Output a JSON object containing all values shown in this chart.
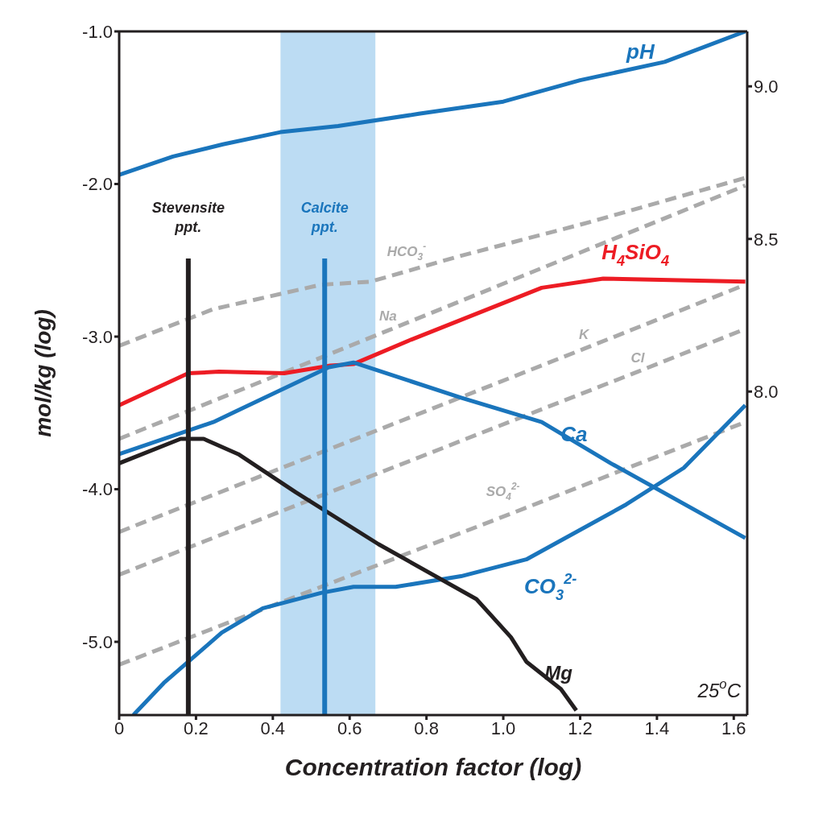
{
  "chart_data": {
    "type": "line",
    "xlabel": "Concentration factor (log)",
    "ylabel": "mol/kg (log)",
    "xlim": [
      0,
      1.635
    ],
    "xticks": [
      0,
      0.2,
      0.4,
      0.6,
      0.8,
      {
        "value": 1,
        "label": "1.0"
      },
      1.2,
      1.4,
      1.6
    ],
    "ylim": [
      -5.48,
      -1.0
    ],
    "yticks": [
      {
        "value": -1,
        "label": "-1.0"
      },
      {
        "value": -2,
        "label": "-2.0"
      },
      {
        "value": -3,
        "label": "-3.0"
      },
      {
        "value": -4,
        "label": "-4.0"
      },
      {
        "value": -5,
        "label": "-5.0"
      }
    ],
    "y2lim": [
      6.94,
      9.18
    ],
    "y2ticks": [
      {
        "value": 8,
        "label": "8.0"
      },
      8.5,
      {
        "value": 9,
        "label": "9.0"
      }
    ],
    "grid": false,
    "marker": "none",
    "annotations": [
      "25$^{o}$C"
    ],
    "bands": [
      {
        "axis": "x",
        "from": 0.42,
        "to": 0.667,
        "color": "#bcdcf3"
      }
    ],
    "ref_lines": [
      {
        "axis": "x",
        "value": 0.18,
        "label": "Stevensite ppt.",
        "color": "#231f20"
      },
      {
        "axis": "x",
        "value": 0.535,
        "label": "Calcite ppt.",
        "color": "#1a75bc"
      }
    ],
    "series": [
      {
        "name": "pH",
        "color": "#1a75bc",
        "axis": "y2",
        "line_style": "solid",
        "x": [
          0,
          0.14,
          0.27,
          0.42,
          0.57,
          0.78,
          1.0,
          1.2,
          1.42,
          1.63
        ],
        "values": [
          8.71,
          8.77,
          8.81,
          8.85,
          8.87,
          8.91,
          8.95,
          9.02,
          9.08,
          9.18
        ]
      },
      {
        "name": "HCO$_{3}$$^{-}$",
        "color": "#aaaaaa",
        "line_style": "dashed",
        "x": [
          0,
          0.245,
          0.525,
          0.654,
          0.89,
          1.21,
          1.63
        ],
        "values": [
          -3.06,
          -2.82,
          -2.66,
          -2.64,
          -2.47,
          -2.26,
          -1.96
        ]
      },
      {
        "name": "Na",
        "color": "#aaaaaa",
        "line_style": "dashed",
        "x": [
          0,
          0.7,
          1.63
        ],
        "values": [
          -3.67,
          -2.96,
          -2.01
        ]
      },
      {
        "name": "K",
        "color": "#aaaaaa",
        "line_style": "dashed",
        "x": [
          0,
          1.21,
          1.63
        ],
        "values": [
          -4.28,
          -3.08,
          -2.66
        ]
      },
      {
        "name": "Cl",
        "color": "#aaaaaa",
        "line_style": "dashed",
        "x": [
          0,
          1.35,
          1.63
        ],
        "values": [
          -4.56,
          -3.23,
          -2.95
        ]
      },
      {
        "name": "SO$_{4}$$^{2-}$",
        "color": "#aaaaaa",
        "line_style": "dashed",
        "x": [
          0,
          1.02,
          1.63
        ],
        "values": [
          -5.15,
          -4.16,
          -3.56
        ]
      },
      {
        "name": "H$_{4}$SiO$_{4}$",
        "color": "#ed1c24",
        "line_style": "solid",
        "x": [
          0,
          0.18,
          0.26,
          0.43,
          0.55,
          0.61,
          0.76,
          1.1,
          1.26,
          1.63
        ],
        "values": [
          -3.45,
          -3.24,
          -3.23,
          -3.24,
          -3.19,
          -3.18,
          -3.02,
          -2.68,
          -2.62,
          -2.64
        ]
      },
      {
        "name": "Ca",
        "color": "#1a75bc",
        "line_style": "solid",
        "x": [
          0,
          0.245,
          0.546,
          0.61,
          0.89,
          1.1,
          1.28,
          1.63
        ],
        "values": [
          -3.77,
          -3.56,
          -3.2,
          -3.17,
          -3.4,
          -3.56,
          -3.83,
          -4.32
        ]
      },
      {
        "name": "CO$_{3}$$^{2-}$",
        "color": "#1a75bc",
        "line_style": "solid",
        "x": [
          0.037,
          0.116,
          0.267,
          0.374,
          0.525,
          0.61,
          0.72,
          0.89,
          1.06,
          1.32,
          1.47,
          1.63
        ],
        "values": [
          -5.48,
          -5.27,
          -4.94,
          -4.78,
          -4.68,
          -4.64,
          -4.64,
          -4.57,
          -4.46,
          -4.1,
          -3.86,
          -3.45
        ]
      },
      {
        "name": "Mg",
        "color": "#231f20",
        "line_style": "solid",
        "x": [
          0,
          0.16,
          0.22,
          0.31,
          0.46,
          0.675,
          0.93,
          1.02,
          1.06,
          1.15,
          1.19
        ],
        "values": [
          -3.83,
          -3.67,
          -3.67,
          -3.77,
          -4.02,
          -4.36,
          -4.72,
          -4.97,
          -5.13,
          -5.31,
          -5.45
        ]
      }
    ]
  }
}
